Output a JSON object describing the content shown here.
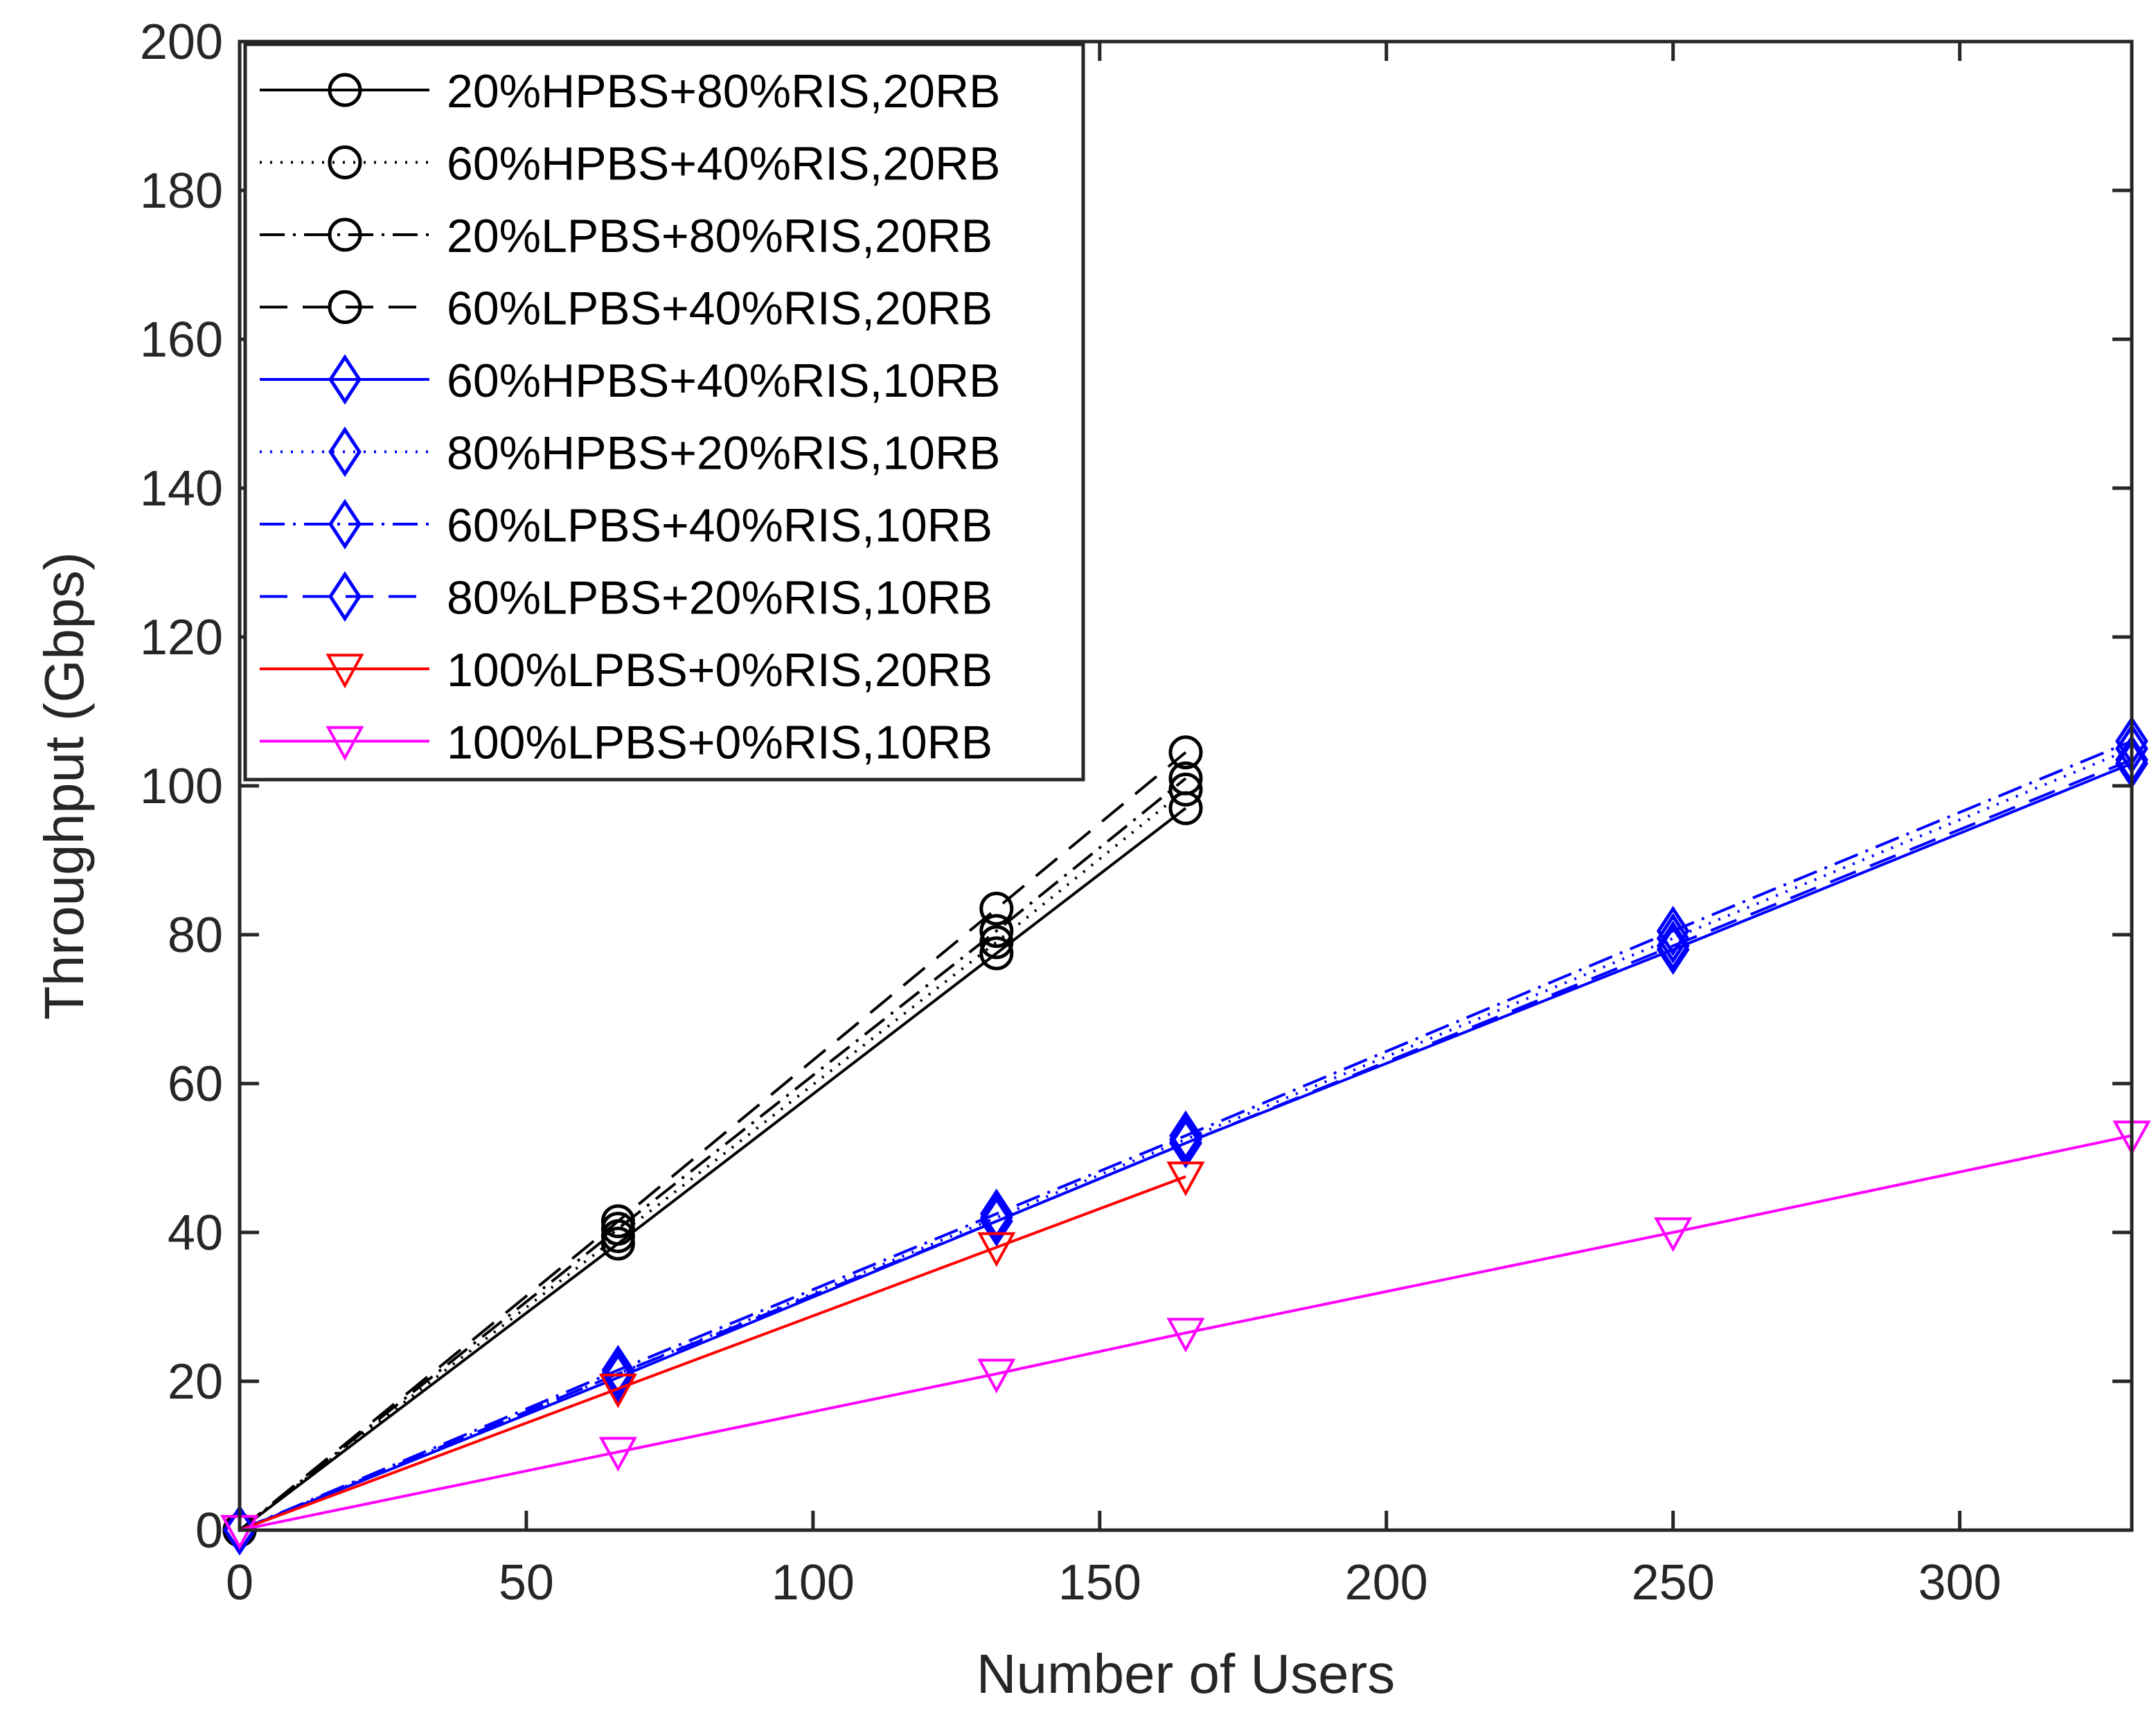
{
  "chart_data": {
    "type": "line",
    "title": "",
    "xlabel": "Number of Users",
    "ylabel": "Throughput (Gbps)",
    "xlim": [
      0,
      330
    ],
    "ylim": [
      0,
      200
    ],
    "xticks": [
      0,
      50,
      100,
      150,
      200,
      250,
      300
    ],
    "yticks": [
      0,
      20,
      40,
      60,
      80,
      100,
      120,
      140,
      160,
      180,
      200
    ],
    "grid": false,
    "legend_position": "top-left",
    "series": [
      {
        "name": "20%HPBS+80%RIS,20RB",
        "color": "#000000",
        "dash": "solid",
        "marker": "circle",
        "x": [
          0,
          66,
          132,
          165
        ],
        "y": [
          0,
          38.5,
          77.5,
          97
        ]
      },
      {
        "name": "60%HPBS+40%RIS,20RB",
        "color": "#000000",
        "dash": "dotted",
        "marker": "circle",
        "x": [
          0,
          66,
          132,
          165
        ],
        "y": [
          0,
          39.5,
          79,
          99.5
        ]
      },
      {
        "name": "20%LPBS+80%RIS,20RB",
        "color": "#000000",
        "dash": "dashdot",
        "marker": "circle",
        "x": [
          0,
          66,
          132,
          165
        ],
        "y": [
          0,
          40.5,
          80.5,
          101
        ]
      },
      {
        "name": "60%LPBS+40%RIS,20RB",
        "color": "#000000",
        "dash": "dashed",
        "marker": "circle",
        "x": [
          0,
          66,
          132,
          165
        ],
        "y": [
          0,
          41.5,
          83.5,
          104.5
        ]
      },
      {
        "name": "60%HPBS+40%RIS,10RB",
        "color": "#0000ff",
        "dash": "solid",
        "marker": "diamond",
        "x": [
          0,
          66,
          132,
          165,
          250,
          330
        ],
        "y": [
          0,
          20.5,
          41.5,
          52,
          78,
          103
        ]
      },
      {
        "name": "80%HPBS+20%RIS,10RB",
        "color": "#0000ff",
        "dash": "dotted",
        "marker": "diamond",
        "x": [
          0,
          66,
          132,
          165,
          250,
          330
        ],
        "y": [
          0,
          21,
          42,
          52.5,
          79.5,
          105
        ]
      },
      {
        "name": "60%LPBS+40%RIS,10RB",
        "color": "#0000ff",
        "dash": "dashdot",
        "marker": "diamond",
        "x": [
          0,
          66,
          132,
          165,
          250,
          330
        ],
        "y": [
          0,
          21.5,
          42.5,
          53,
          80.5,
          106
        ]
      },
      {
        "name": "80%LPBS+20%RIS,10RB",
        "color": "#0000ff",
        "dash": "dashed",
        "marker": "diamond",
        "x": [
          0,
          66,
          132,
          165,
          250,
          330
        ],
        "y": [
          0,
          21,
          41.5,
          52,
          78.5,
          103.5
        ]
      },
      {
        "name": "100%LPBS+0%RIS,20RB",
        "color": "#ff0000",
        "dash": "solid",
        "marker": "triangle-down",
        "x": [
          0,
          66,
          132,
          165
        ],
        "y": [
          0,
          19,
          38,
          47.5
        ]
      },
      {
        "name": "100%LPBS+0%RIS,10RB",
        "color": "#ff00ff",
        "dash": "solid",
        "marker": "triangle-down",
        "x": [
          0,
          66,
          132,
          165,
          250,
          330
        ],
        "y": [
          0,
          10.5,
          21,
          26.5,
          40,
          53
        ]
      }
    ]
  }
}
